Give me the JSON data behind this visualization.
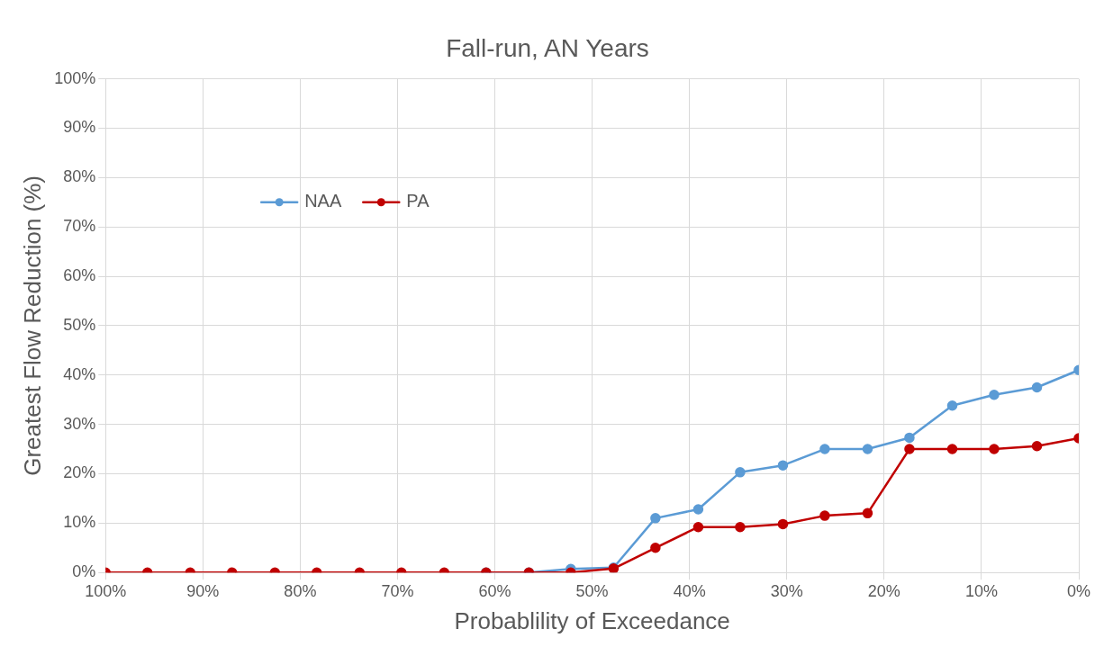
{
  "chart_data": {
    "type": "line",
    "title": "Fall-run, AN Years",
    "xlabel": "Probablility of Exceedance",
    "ylabel": "Greatest Flow Reduction (%)",
    "x": [
      100,
      95.7,
      91.3,
      87.0,
      82.6,
      78.3,
      73.9,
      69.6,
      65.2,
      60.9,
      56.5,
      52.2,
      47.8,
      43.5,
      39.1,
      34.8,
      30.4,
      26.1,
      21.7,
      17.4,
      13.0,
      8.7,
      4.3,
      0
    ],
    "series": [
      {
        "name": "NAA",
        "color": "#5b9bd5",
        "values": [
          null,
          null,
          null,
          null,
          null,
          null,
          null,
          null,
          null,
          0,
          0,
          0.7,
          1,
          11,
          12.8,
          20.3,
          21.7,
          25,
          25,
          27.3,
          33.8,
          36,
          37.5,
          41
        ]
      },
      {
        "name": "PA",
        "color": "#c00000",
        "values": [
          0,
          0,
          0,
          0,
          0,
          0,
          0,
          0,
          0,
          0,
          0,
          0,
          0.8,
          5,
          9.2,
          9.2,
          9.8,
          11.5,
          12,
          25,
          25,
          25,
          25.6,
          27.2
        ]
      }
    ],
    "xlim": [
      100,
      0
    ],
    "ylim": [
      0,
      100
    ],
    "xticks": [
      {
        "value": 100,
        "label": "100%"
      },
      {
        "value": 90,
        "label": "90%"
      },
      {
        "value": 80,
        "label": "80%"
      },
      {
        "value": 70,
        "label": "70%"
      },
      {
        "value": 60,
        "label": "60%"
      },
      {
        "value": 50,
        "label": "50%"
      },
      {
        "value": 40,
        "label": "40%"
      },
      {
        "value": 30,
        "label": "30%"
      },
      {
        "value": 20,
        "label": "20%"
      },
      {
        "value": 10,
        "label": "10%"
      },
      {
        "value": 0,
        "label": "0%"
      }
    ],
    "yticks": [
      {
        "value": 0,
        "label": "0%"
      },
      {
        "value": 10,
        "label": "10%"
      },
      {
        "value": 20,
        "label": "20%"
      },
      {
        "value": 30,
        "label": "30%"
      },
      {
        "value": 40,
        "label": "40%"
      },
      {
        "value": 50,
        "label": "50%"
      },
      {
        "value": 60,
        "label": "60%"
      },
      {
        "value": 70,
        "label": "70%"
      },
      {
        "value": 80,
        "label": "80%"
      },
      {
        "value": 90,
        "label": "90%"
      },
      {
        "value": 100,
        "label": "100%"
      }
    ],
    "grid": true,
    "legend": "top left",
    "marker": "circle",
    "line_style": "solid"
  }
}
